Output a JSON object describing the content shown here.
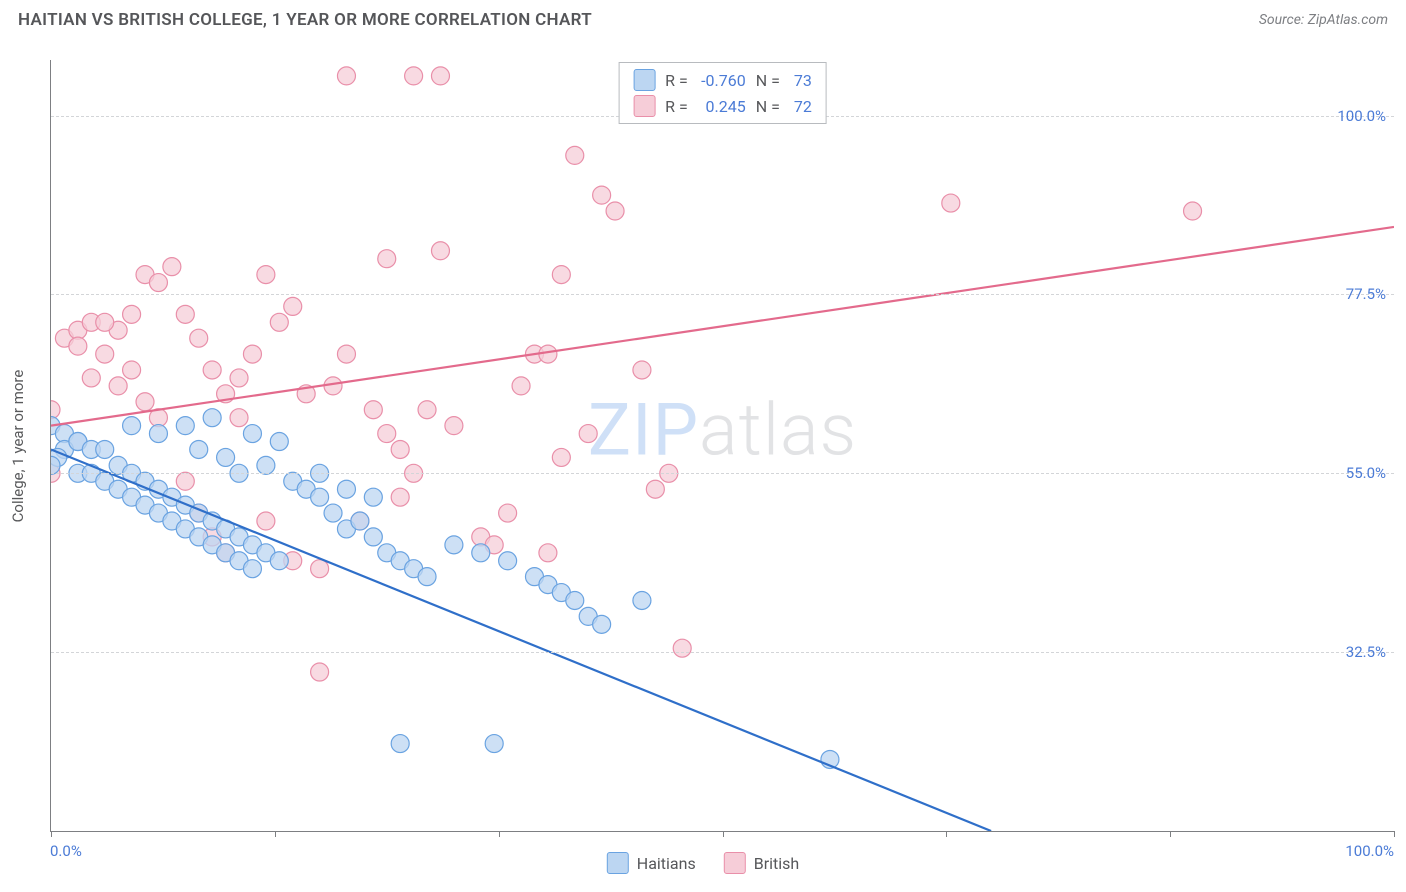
{
  "header": {
    "title": "HAITIAN VS BRITISH COLLEGE, 1 YEAR OR MORE CORRELATION CHART",
    "source_prefix": "Source: ",
    "source_name": "ZipAtlas.com"
  },
  "watermark": {
    "part1": "ZIP",
    "part2": "atlas"
  },
  "y_axis_label": "College, 1 year or more",
  "chart": {
    "type": "scatter",
    "background_color": "#ffffff",
    "grid_color": "#d3d5d8",
    "axis_color": "#7d7f82",
    "tick_label_color": "#4b7bd6",
    "tick_fontsize": 15,
    "xlim": [
      0,
      100
    ],
    "ylim": [
      10,
      107
    ],
    "y_ticks": [
      32.5,
      55.0,
      77.5,
      100.0
    ],
    "y_tick_labels": [
      "32.5%",
      "55.0%",
      "77.5%",
      "100.0%"
    ],
    "x_ticks": [
      0,
      16.67,
      33.33,
      50,
      66.67,
      83.33,
      100
    ],
    "x_tick_labels_shown": {
      "0": "0.0%",
      "100": "100.0%"
    },
    "series": [
      {
        "id": "haitians",
        "label": "Haitians",
        "fill_color": "#bcd6f2",
        "stroke_color": "#6aa3e1",
        "line_color": "#2f6fc9",
        "marker_radius": 9,
        "marker_opacity": 0.75,
        "line_width": 2.2,
        "R": "-0.760",
        "N": "73",
        "trend_line": {
          "x1": 0,
          "y1": 58,
          "x2": 70,
          "y2": 10
        },
        "points": [
          [
            0,
            61
          ],
          [
            1,
            60
          ],
          [
            2,
            59
          ],
          [
            1,
            58
          ],
          [
            0.5,
            57
          ],
          [
            0,
            56
          ],
          [
            2,
            59
          ],
          [
            3,
            58
          ],
          [
            2,
            55
          ],
          [
            4,
            58
          ],
          [
            3,
            55
          ],
          [
            5,
            56
          ],
          [
            4,
            54
          ],
          [
            6,
            55
          ],
          [
            5,
            53
          ],
          [
            7,
            54
          ],
          [
            6,
            52
          ],
          [
            8,
            53
          ],
          [
            7,
            51
          ],
          [
            9,
            52
          ],
          [
            8,
            50
          ],
          [
            10,
            51
          ],
          [
            9,
            49
          ],
          [
            11,
            50
          ],
          [
            10,
            48
          ],
          [
            12,
            49
          ],
          [
            11,
            47
          ],
          [
            13,
            48
          ],
          [
            12,
            46
          ],
          [
            14,
            47
          ],
          [
            13,
            45
          ],
          [
            15,
            46
          ],
          [
            14,
            44
          ],
          [
            16,
            45
          ],
          [
            15,
            43
          ],
          [
            17,
            44
          ],
          [
            6,
            61
          ],
          [
            8,
            60
          ],
          [
            10,
            61
          ],
          [
            12,
            62
          ],
          [
            11,
            58
          ],
          [
            13,
            57
          ],
          [
            14,
            55
          ],
          [
            16,
            56
          ],
          [
            18,
            54
          ],
          [
            15,
            60
          ],
          [
            17,
            59
          ],
          [
            19,
            53
          ],
          [
            20,
            52
          ],
          [
            21,
            50
          ],
          [
            22,
            48
          ],
          [
            23,
            49
          ],
          [
            24,
            47
          ],
          [
            25,
            45
          ],
          [
            26,
            44
          ],
          [
            27,
            43
          ],
          [
            28,
            42
          ],
          [
            20,
            55
          ],
          [
            22,
            53
          ],
          [
            24,
            52
          ],
          [
            30,
            46
          ],
          [
            32,
            45
          ],
          [
            34,
            44
          ],
          [
            36,
            42
          ],
          [
            37,
            41
          ],
          [
            38,
            40
          ],
          [
            39,
            39
          ],
          [
            40,
            37
          ],
          [
            41,
            36
          ],
          [
            33,
            21
          ],
          [
            26,
            21
          ],
          [
            58,
            19
          ],
          [
            44,
            39
          ]
        ]
      },
      {
        "id": "british",
        "label": "British",
        "fill_color": "#f6cdd8",
        "stroke_color": "#e98fa9",
        "line_color": "#e36a8c",
        "marker_radius": 9,
        "marker_opacity": 0.75,
        "line_width": 2.2,
        "R": "0.245",
        "N": "72",
        "trend_line": {
          "x1": 0,
          "y1": 61,
          "x2": 100,
          "y2": 86
        },
        "points": [
          [
            0,
            55
          ],
          [
            0,
            63
          ],
          [
            1,
            72
          ],
          [
            2,
            73
          ],
          [
            3,
            74
          ],
          [
            2,
            71
          ],
          [
            3,
            67
          ],
          [
            4,
            70
          ],
          [
            5,
            73
          ],
          [
            4,
            74
          ],
          [
            6,
            68
          ],
          [
            5,
            66
          ],
          [
            7,
            64
          ],
          [
            8,
            62
          ],
          [
            6,
            75
          ],
          [
            7,
            80
          ],
          [
            8,
            79
          ],
          [
            9,
            81
          ],
          [
            10,
            75
          ],
          [
            11,
            72
          ],
          [
            12,
            68
          ],
          [
            13,
            65
          ],
          [
            14,
            67
          ],
          [
            15,
            70
          ],
          [
            12,
            47
          ],
          [
            13,
            45
          ],
          [
            16,
            49
          ],
          [
            18,
            44
          ],
          [
            20,
            43
          ],
          [
            19,
            65
          ],
          [
            21,
            66
          ],
          [
            22,
            70
          ],
          [
            24,
            63
          ],
          [
            25,
            60
          ],
          [
            26,
            58
          ],
          [
            27,
            55
          ],
          [
            17,
            74
          ],
          [
            18,
            76
          ],
          [
            20,
            30
          ],
          [
            22,
            105
          ],
          [
            25,
            82
          ],
          [
            27,
            105
          ],
          [
            29,
            105
          ],
          [
            29,
            83
          ],
          [
            30,
            61
          ],
          [
            32,
            47
          ],
          [
            33,
            46
          ],
          [
            35,
            66
          ],
          [
            36,
            70
          ],
          [
            38,
            80
          ],
          [
            37,
            45
          ],
          [
            40,
            60
          ],
          [
            39,
            95
          ],
          [
            41,
            90
          ],
          [
            42,
            88
          ],
          [
            44,
            68
          ],
          [
            45,
            53
          ],
          [
            46,
            55
          ],
          [
            47,
            33
          ],
          [
            44,
            105
          ],
          [
            67,
            89
          ],
          [
            85,
            88
          ],
          [
            37,
            70
          ],
          [
            38,
            57
          ],
          [
            16,
            80
          ],
          [
            14,
            62
          ],
          [
            11,
            50
          ],
          [
            10,
            54
          ],
          [
            23,
            49
          ],
          [
            28,
            63
          ],
          [
            26,
            52
          ],
          [
            34,
            50
          ]
        ]
      }
    ]
  },
  "legend_top": {
    "r_label": "R =",
    "n_label": "N ="
  },
  "legend_bottom": {
    "items": [
      "Haitians",
      "British"
    ]
  }
}
